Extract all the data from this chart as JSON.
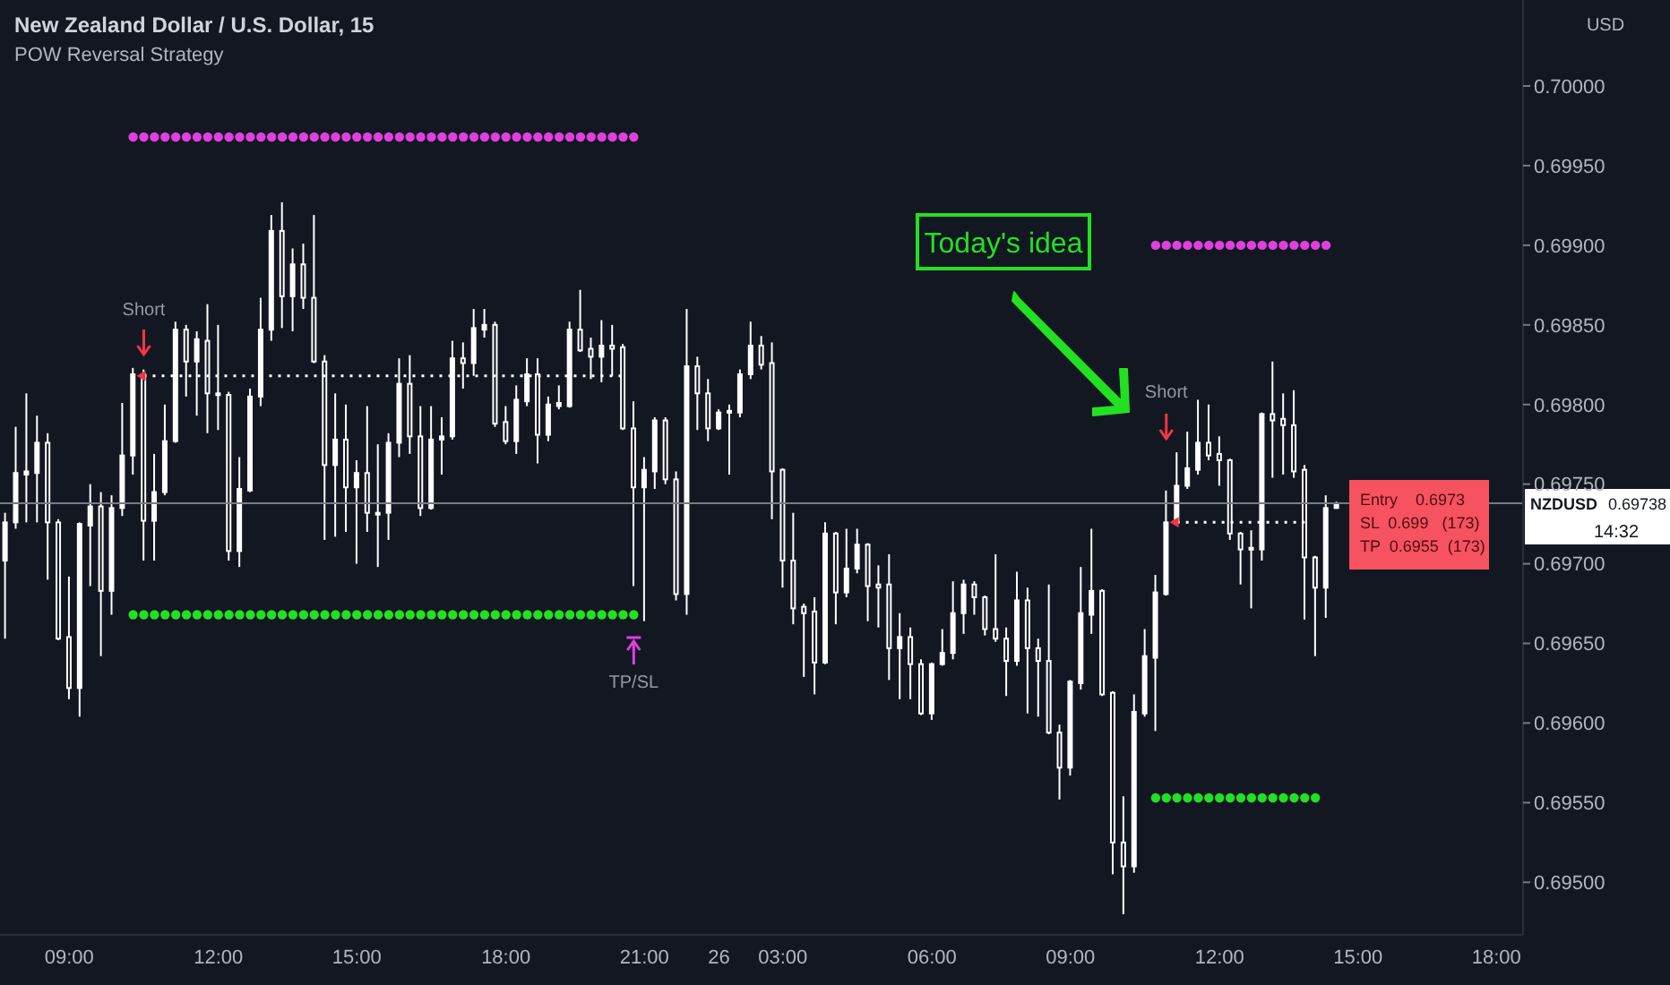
{
  "chart_data": {
    "type": "candlestick",
    "title": "New Zealand Dollar / U.S. Dollar, 15",
    "subtitle": "POW Reversal Strategy",
    "ylabel": "USD",
    "color": "#ffffff",
    "categories": [
      null,
      null,
      null,
      null,
      null,
      null,
      "09:00",
      null,
      null,
      null,
      null,
      null,
      null,
      null,
      null,
      null,
      null,
      null,
      null,
      null,
      "12:00",
      null,
      null,
      null,
      null,
      null,
      null,
      null,
      null,
      null,
      null,
      null,
      null,
      "15:00",
      null,
      null,
      null,
      null,
      null,
      null,
      null,
      null,
      null,
      null,
      null,
      null,
      null,
      "18:00",
      null,
      null,
      null,
      null,
      null,
      null,
      null,
      null,
      null,
      null,
      null,
      null,
      "21:00",
      null,
      null,
      null,
      null,
      null,
      null,
      "26",
      null,
      null,
      null,
      null,
      null,
      "03:00",
      null,
      null,
      null,
      null,
      null,
      null,
      null,
      null,
      null,
      null,
      null,
      null,
      null,
      "06:00",
      null,
      null,
      null,
      null,
      null,
      null,
      null,
      null,
      null,
      null,
      null,
      null,
      "09:00",
      null,
      null,
      null,
      null,
      null,
      null,
      null,
      null,
      null,
      null,
      null,
      null,
      null,
      "12:00",
      null,
      null,
      null,
      null,
      null,
      null,
      null,
      null,
      null,
      null,
      null,
      null,
      "15:00",
      null,
      null,
      null,
      null,
      null,
      null,
      null,
      null,
      null,
      null,
      null,
      null,
      "18:00",
      null,
      null
    ],
    "ohlc": [
      [
        0.69702,
        0.69732,
        0.69653,
        0.69726
      ],
      [
        0.69726,
        0.69786,
        0.69722,
        0.69757
      ],
      [
        0.69756,
        0.69807,
        0.69726,
        0.69758
      ],
      [
        0.69757,
        0.69793,
        0.69726,
        0.69776
      ],
      [
        0.69776,
        0.69782,
        0.6969,
        0.69726
      ],
      [
        0.69726,
        0.69728,
        0.69652,
        0.69653
      ],
      [
        0.69654,
        0.69692,
        0.69615,
        0.69622
      ],
      [
        0.69622,
        0.69726,
        0.69604,
        0.69725
      ],
      [
        0.69724,
        0.6975,
        0.69686,
        0.69736
      ],
      [
        0.69736,
        0.69745,
        0.69642,
        0.69683
      ],
      [
        0.69683,
        0.69743,
        0.69668,
        0.69735
      ],
      [
        0.69735,
        0.69801,
        0.6973,
        0.69768
      ],
      [
        0.69768,
        0.69823,
        0.69756,
        0.69819
      ],
      [
        0.69819,
        0.69822,
        0.69702,
        0.69727
      ],
      [
        0.69727,
        0.69769,
        0.69702,
        0.69745
      ],
      [
        0.69745,
        0.698,
        0.69743,
        0.69777
      ],
      [
        0.69777,
        0.69852,
        0.69776,
        0.69847
      ],
      [
        0.69847,
        0.6985,
        0.69805,
        0.69827
      ],
      [
        0.69827,
        0.69846,
        0.69793,
        0.69841
      ],
      [
        0.6984,
        0.69863,
        0.69782,
        0.69807
      ],
      [
        0.69807,
        0.6985,
        0.69784,
        0.69806
      ],
      [
        0.69806,
        0.69808,
        0.69702,
        0.69708
      ],
      [
        0.69708,
        0.69767,
        0.69698,
        0.69747
      ],
      [
        0.69746,
        0.6981,
        0.69745,
        0.69805
      ],
      [
        0.69805,
        0.69867,
        0.69799,
        0.69847
      ],
      [
        0.69847,
        0.69919,
        0.6984,
        0.69909
      ],
      [
        0.69909,
        0.69927,
        0.69848,
        0.69868
      ],
      [
        0.69868,
        0.69898,
        0.69846,
        0.69888
      ],
      [
        0.69888,
        0.69901,
        0.6986,
        0.69867
      ],
      [
        0.69867,
        0.69919,
        0.69826,
        0.69827
      ],
      [
        0.69827,
        0.69831,
        0.69715,
        0.69762
      ],
      [
        0.69762,
        0.69807,
        0.69717,
        0.69778
      ],
      [
        0.69778,
        0.698,
        0.6972,
        0.69748
      ],
      [
        0.69748,
        0.69765,
        0.697,
        0.69757
      ],
      [
        0.69757,
        0.69799,
        0.6972,
        0.69732
      ],
      [
        0.69732,
        0.69775,
        0.69698,
        0.69731
      ],
      [
        0.69732,
        0.69782,
        0.69715,
        0.69776
      ],
      [
        0.69776,
        0.69829,
        0.69767,
        0.69813
      ],
      [
        0.69813,
        0.69831,
        0.69769,
        0.6978
      ],
      [
        0.6978,
        0.69799,
        0.6973,
        0.69735
      ],
      [
        0.69735,
        0.69799,
        0.69734,
        0.69778
      ],
      [
        0.69778,
        0.69792,
        0.69756,
        0.6978
      ],
      [
        0.6978,
        0.6984,
        0.69778,
        0.69829
      ],
      [
        0.69829,
        0.69839,
        0.6981,
        0.69826
      ],
      [
        0.69826,
        0.6986,
        0.69818,
        0.69848
      ],
      [
        0.69847,
        0.6986,
        0.69842,
        0.6985
      ],
      [
        0.6985,
        0.69852,
        0.69786,
        0.69788
      ],
      [
        0.69789,
        0.69799,
        0.69775,
        0.69777
      ],
      [
        0.69777,
        0.69812,
        0.69769,
        0.69803
      ],
      [
        0.69802,
        0.69829,
        0.69799,
        0.69819
      ],
      [
        0.69819,
        0.69829,
        0.69763,
        0.69781
      ],
      [
        0.69781,
        0.69805,
        0.69777,
        0.698
      ],
      [
        0.69799,
        0.69812,
        0.69797,
        0.69801
      ],
      [
        0.69799,
        0.69852,
        0.69798,
        0.69847
      ],
      [
        0.69847,
        0.69872,
        0.69833,
        0.69834
      ],
      [
        0.69835,
        0.69842,
        0.69816,
        0.6983
      ],
      [
        0.6983,
        0.69853,
        0.69814,
        0.69837
      ],
      [
        0.69837,
        0.6985,
        0.69818,
        0.69835
      ],
      [
        0.69836,
        0.69838,
        0.69784,
        0.69785
      ],
      [
        0.69785,
        0.69802,
        0.69686,
        0.69748
      ],
      [
        0.69748,
        0.69767,
        0.69664,
        0.69759
      ],
      [
        0.69758,
        0.69792,
        0.69747,
        0.6979
      ],
      [
        0.6979,
        0.69792,
        0.6975,
        0.69753
      ],
      [
        0.69753,
        0.69758,
        0.69677,
        0.69681
      ],
      [
        0.69681,
        0.6986,
        0.69668,
        0.69824
      ],
      [
        0.69824,
        0.6983,
        0.69784,
        0.69807
      ],
      [
        0.69807,
        0.69816,
        0.69777,
        0.69785
      ],
      [
        0.69785,
        0.69797,
        0.69784,
        0.69795
      ],
      [
        0.69795,
        0.698,
        0.69756,
        0.69796
      ],
      [
        0.69795,
        0.69822,
        0.69792,
        0.69819
      ],
      [
        0.69819,
        0.69852,
        0.69816,
        0.69837
      ],
      [
        0.69837,
        0.69843,
        0.69822,
        0.69825
      ],
      [
        0.69826,
        0.69839,
        0.69728,
        0.69758
      ],
      [
        0.69759,
        0.6976,
        0.69685,
        0.69702
      ],
      [
        0.69702,
        0.69732,
        0.69662,
        0.69672
      ],
      [
        0.69673,
        0.69675,
        0.69629,
        0.69669
      ],
      [
        0.6967,
        0.69679,
        0.69618,
        0.69638
      ],
      [
        0.69638,
        0.69726,
        0.69637,
        0.69719
      ],
      [
        0.69719,
        0.6972,
        0.69662,
        0.69682
      ],
      [
        0.69682,
        0.69722,
        0.69679,
        0.69697
      ],
      [
        0.69697,
        0.69722,
        0.69694,
        0.69712
      ],
      [
        0.69712,
        0.69713,
        0.69664,
        0.69686
      ],
      [
        0.69687,
        0.69699,
        0.6966,
        0.69685
      ],
      [
        0.69687,
        0.69706,
        0.69627,
        0.69647
      ],
      [
        0.69647,
        0.69669,
        0.69615,
        0.69654
      ],
      [
        0.69654,
        0.6966,
        0.69615,
        0.69637
      ],
      [
        0.69637,
        0.6964,
        0.69605,
        0.69606
      ],
      [
        0.69606,
        0.69638,
        0.69602,
        0.69637
      ],
      [
        0.69637,
        0.69659,
        0.69636,
        0.69644
      ],
      [
        0.69644,
        0.69689,
        0.6964,
        0.69669
      ],
      [
        0.69669,
        0.6969,
        0.69656,
        0.69687
      ],
      [
        0.69687,
        0.69689,
        0.69668,
        0.69679
      ],
      [
        0.69679,
        0.6968,
        0.69655,
        0.69659
      ],
      [
        0.69659,
        0.69706,
        0.69651,
        0.69653
      ],
      [
        0.69653,
        0.6966,
        0.69617,
        0.69639
      ],
      [
        0.69639,
        0.69695,
        0.69636,
        0.69677
      ],
      [
        0.69677,
        0.69685,
        0.69606,
        0.69647
      ],
      [
        0.69647,
        0.69653,
        0.69604,
        0.69639
      ],
      [
        0.69639,
        0.69687,
        0.69593,
        0.69594
      ],
      [
        0.69594,
        0.69599,
        0.69552,
        0.69572
      ],
      [
        0.69572,
        0.69627,
        0.69567,
        0.69626
      ],
      [
        0.69625,
        0.69698,
        0.69621,
        0.69669
      ],
      [
        0.69668,
        0.69722,
        0.69656,
        0.69683
      ],
      [
        0.69683,
        0.69684,
        0.69617,
        0.69618
      ],
      [
        0.69619,
        0.6962,
        0.69505,
        0.69525
      ],
      [
        0.69525,
        0.69554,
        0.6948,
        0.6951
      ],
      [
        0.6951,
        0.69618,
        0.69506,
        0.69607
      ],
      [
        0.69606,
        0.69659,
        0.69604,
        0.69642
      ],
      [
        0.69641,
        0.69693,
        0.69595,
        0.69682
      ],
      [
        0.69681,
        0.69746,
        0.6968,
        0.69726
      ],
      [
        0.69726,
        0.6977,
        0.69725,
        0.69749
      ],
      [
        0.69749,
        0.69783,
        0.69747,
        0.6976
      ],
      [
        0.69759,
        0.69803,
        0.69756,
        0.69776
      ],
      [
        0.69776,
        0.698,
        0.69765,
        0.69768
      ],
      [
        0.69769,
        0.6978,
        0.69749,
        0.69765
      ],
      [
        0.69765,
        0.69766,
        0.69715,
        0.69719
      ],
      [
        0.69719,
        0.6972,
        0.69687,
        0.69709
      ],
      [
        0.6971,
        0.69721,
        0.69672,
        0.69709
      ],
      [
        0.69709,
        0.69795,
        0.69702,
        0.69794
      ],
      [
        0.69794,
        0.69827,
        0.69754,
        0.6979
      ],
      [
        0.69791,
        0.69807,
        0.69756,
        0.69787
      ],
      [
        0.69787,
        0.69809,
        0.69754,
        0.69758
      ],
      [
        0.69759,
        0.69762,
        0.69665,
        0.69704
      ],
      [
        0.69704,
        0.69705,
        0.69642,
        0.69685
      ],
      [
        0.69685,
        0.69743,
        0.69666,
        0.69735
      ],
      [
        0.69735,
        0.69739,
        0.69735,
        0.69738
      ],
      null,
      null,
      null,
      null,
      null,
      null,
      null,
      null,
      null,
      null,
      null,
      null,
      null,
      null,
      null,
      null,
      null
    ],
    "series": [
      {
        "type": "scatter",
        "marker": "circle",
        "color": "#e040e0",
        "values": [
          null,
          null,
          null,
          null,
          null,
          null,
          null,
          null,
          null,
          null,
          null,
          null,
          0.69968,
          0.69968,
          0.69968,
          0.69968,
          0.69968,
          0.69968,
          0.69968,
          0.69968,
          0.69968,
          0.69968,
          0.69968,
          0.69968,
          0.69968,
          0.69968,
          0.69968,
          0.69968,
          0.69968,
          0.69968,
          0.69968,
          0.69968,
          0.69968,
          0.69968,
          0.69968,
          0.69968,
          0.69968,
          0.69968,
          0.69968,
          0.69968,
          0.69968,
          0.69968,
          0.69968,
          0.69968,
          0.69968,
          0.69968,
          0.69968,
          0.69968,
          0.69968,
          0.69968,
          0.69968,
          0.69968,
          0.69968,
          0.69968,
          0.69968,
          0.69968,
          0.69968,
          0.69968,
          0.69968,
          0.69968,
          null,
          null,
          null,
          null,
          null,
          null,
          null,
          null,
          null,
          null,
          null,
          null,
          null,
          null,
          null,
          null,
          null,
          null,
          null,
          null,
          null,
          null,
          null,
          null,
          null,
          null,
          null,
          null,
          null,
          null,
          null,
          null,
          null,
          null,
          null,
          null,
          null,
          null,
          null,
          null,
          null,
          null,
          null,
          null,
          null,
          null,
          null,
          null,
          0.699,
          0.699,
          0.699,
          0.699,
          0.699,
          0.699,
          0.699,
          0.699,
          0.699,
          0.699,
          0.699,
          0.699,
          0.699,
          0.699,
          0.699,
          0.699,
          0.699,
          null,
          null,
          null,
          null,
          null,
          null,
          null,
          null,
          null,
          null,
          null,
          null,
          null,
          null,
          null,
          null,
          null,
          null
        ]
      },
      {
        "type": "scatter",
        "marker": "circle",
        "color": "#22e022",
        "values": [
          null,
          null,
          null,
          null,
          null,
          null,
          null,
          null,
          null,
          null,
          null,
          null,
          0.69668,
          0.69668,
          0.69668,
          0.69668,
          0.69668,
          0.69668,
          0.69668,
          0.69668,
          0.69668,
          0.69668,
          0.69668,
          0.69668,
          0.69668,
          0.69668,
          0.69668,
          0.69668,
          0.69668,
          0.69668,
          0.69668,
          0.69668,
          0.69668,
          0.69668,
          0.69668,
          0.69668,
          0.69668,
          0.69668,
          0.69668,
          0.69668,
          0.69668,
          0.69668,
          0.69668,
          0.69668,
          0.69668,
          0.69668,
          0.69668,
          0.69668,
          0.69668,
          0.69668,
          0.69668,
          0.69668,
          0.69668,
          0.69668,
          0.69668,
          0.69668,
          0.69668,
          0.69668,
          0.69668,
          0.69668,
          null,
          null,
          null,
          null,
          null,
          null,
          null,
          null,
          null,
          null,
          null,
          null,
          null,
          null,
          null,
          null,
          null,
          null,
          null,
          null,
          null,
          null,
          null,
          null,
          null,
          null,
          null,
          null,
          null,
          null,
          null,
          null,
          null,
          null,
          null,
          null,
          null,
          null,
          null,
          null,
          null,
          null,
          null,
          null,
          null,
          null,
          null,
          null,
          0.69553,
          0.69553,
          0.69553,
          0.69553,
          0.69553,
          0.69553,
          0.69553,
          0.69553,
          0.69553,
          0.69553,
          0.69553,
          0.69553,
          0.69553,
          0.69553,
          0.69553,
          0.69553,
          null,
          null,
          null,
          null,
          null,
          null,
          null,
          null,
          null,
          null,
          null,
          null,
          null,
          null,
          null,
          null,
          null,
          null,
          null
        ]
      },
      {
        "type": "line",
        "line_style": "dotted",
        "color": "#ffffff",
        "values": [
          null,
          null,
          null,
          null,
          null,
          null,
          null,
          null,
          null,
          null,
          null,
          null,
          null,
          0.69818,
          0.69818,
          0.69818,
          0.69818,
          0.69818,
          0.69818,
          0.69818,
          0.69818,
          0.69818,
          0.69818,
          0.69818,
          0.69818,
          0.69818,
          0.69818,
          0.69818,
          0.69818,
          0.69818,
          0.69818,
          0.69818,
          0.69818,
          0.69818,
          0.69818,
          0.69818,
          0.69818,
          0.69818,
          0.69818,
          0.69818,
          0.69818,
          0.69818,
          0.69818,
          0.69818,
          0.69818,
          0.69818,
          0.69818,
          0.69818,
          0.69818,
          0.69818,
          0.69818,
          0.69818,
          0.69818,
          0.69818,
          0.69818,
          0.69818,
          0.69818,
          0.69818,
          0.69818,
          null,
          null,
          null,
          null,
          null,
          null,
          null,
          null,
          null,
          null,
          null,
          null,
          null,
          null,
          null,
          null,
          null,
          null,
          null,
          null,
          null,
          null,
          null,
          null,
          null,
          null,
          null,
          null,
          null,
          null,
          null,
          null,
          null,
          null,
          null,
          null,
          null,
          null,
          null,
          null,
          null,
          null,
          null,
          null,
          null,
          null,
          null,
          null,
          null,
          null,
          null,
          0.69726,
          0.69726,
          0.69726,
          0.69726,
          0.69726,
          0.69726,
          0.69726,
          0.69726,
          0.69726,
          0.69726,
          0.69726,
          0.69726,
          0.69726,
          null,
          null,
          null,
          null,
          null,
          null,
          null,
          null,
          null,
          null,
          null,
          null,
          null,
          null,
          null,
          null,
          null,
          null,
          null,
          null
        ]
      }
    ],
    "ylim": [
      0.69467,
      0.70054
    ],
    "yticks": [
      {
        "value": 0.695,
        "label": "0.69500"
      },
      {
        "value": 0.6955,
        "label": "0.69550"
      },
      {
        "value": 0.696,
        "label": "0.69600"
      },
      {
        "value": 0.6965,
        "label": "0.69650"
      },
      {
        "value": 0.697,
        "label": "0.69700"
      },
      {
        "value": 0.6975,
        "label": "0.69750"
      },
      {
        "value": 0.698,
        "label": "0.69800"
      },
      {
        "value": 0.6985,
        "label": "0.69850"
      },
      {
        "value": 0.699,
        "label": "0.69900"
      },
      {
        "value": 0.6995,
        "label": "0.69950"
      },
      {
        "value": 0.7,
        "label": "0.70000"
      }
    ],
    "ref_lines": [
      {
        "axis": "y",
        "value": 0.69738,
        "label": "NZDUSD",
        "color": "#787b86"
      }
    ],
    "annotations": [
      "Short",
      "TP/SL",
      "Today's idea",
      "Short",
      "Entry    0.6973",
      "SL  0.699   (173)",
      "TP  0.6955  (173)",
      "14:32",
      "0.69738"
    ]
  }
}
